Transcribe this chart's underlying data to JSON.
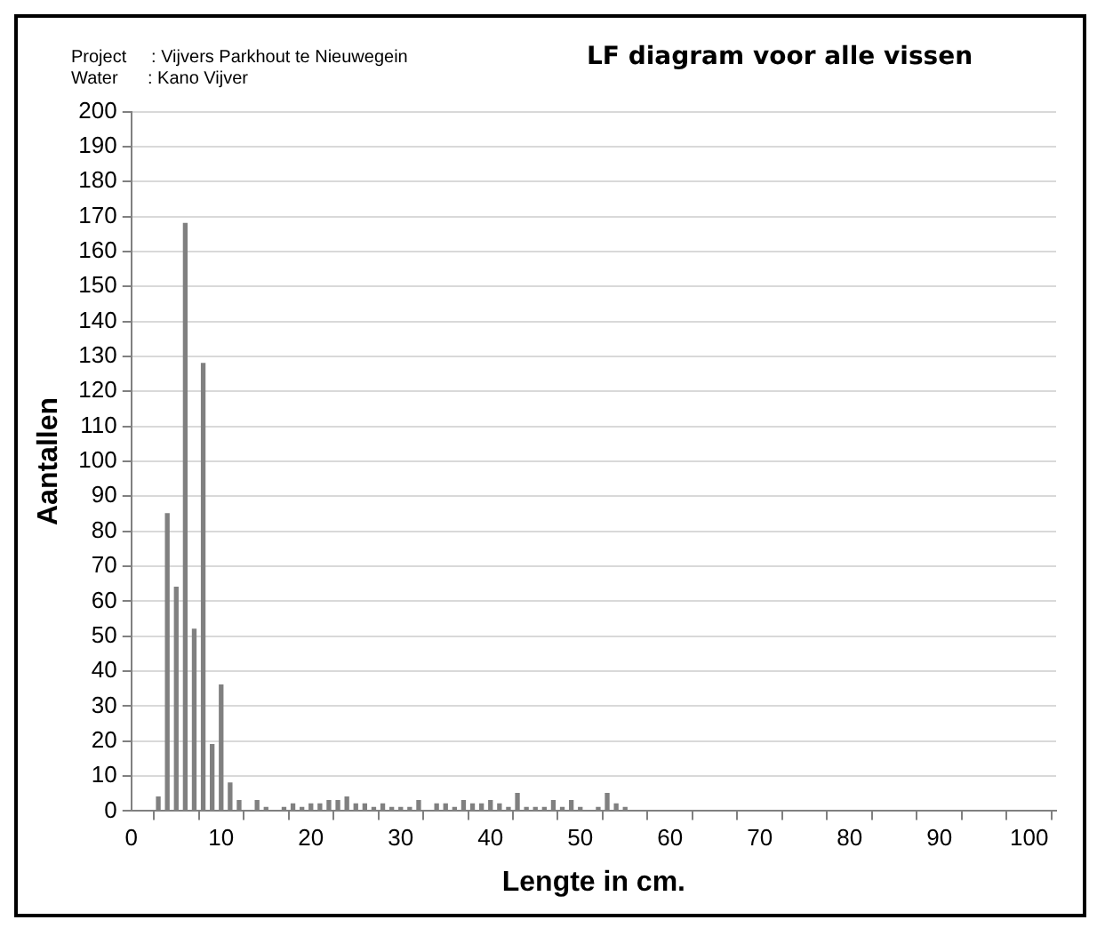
{
  "chart_data": {
    "type": "bar",
    "title": "LF diagram voor alle vissen",
    "annotations": [
      "Project     : Vijvers Parkhout te Nieuwegein",
      "Water      : Kano Vijver"
    ],
    "xlabel": "Lengte in cm.",
    "ylabel": "Aantallen",
    "categories": [
      "0",
      null,
      null,
      null,
      null,
      null,
      null,
      null,
      null,
      null,
      "10",
      null,
      null,
      null,
      null,
      null,
      null,
      null,
      null,
      null,
      "20",
      null,
      null,
      null,
      null,
      null,
      null,
      null,
      null,
      null,
      "30",
      null,
      null,
      null,
      null,
      null,
      null,
      null,
      null,
      null,
      "40",
      null,
      null,
      null,
      null,
      null,
      null,
      null,
      null,
      null,
      "50",
      null,
      null,
      null,
      null,
      null,
      null,
      null,
      null,
      null,
      "60",
      null,
      null,
      null,
      null,
      null,
      null,
      null,
      null,
      null,
      "70",
      null,
      null,
      null,
      null,
      null,
      null,
      null,
      null,
      null,
      "80",
      null,
      null,
      null,
      null,
      null,
      null,
      null,
      null,
      null,
      "90",
      null,
      null,
      null,
      null,
      null,
      null,
      null,
      null,
      null,
      "100",
      null,
      null,
      null
    ],
    "values": [
      null,
      null,
      null,
      4,
      85,
      64,
      168,
      52,
      128,
      19,
      36,
      8,
      3,
      null,
      3,
      1,
      null,
      1,
      2,
      1,
      2,
      2,
      3,
      3,
      4,
      2,
      2,
      1,
      2,
      1,
      1,
      1,
      3,
      null,
      2,
      2,
      1,
      3,
      2,
      2,
      3,
      2,
      1,
      5,
      1,
      1,
      1,
      3,
      1,
      3,
      1,
      null,
      1,
      5,
      2,
      1,
      null,
      null,
      null,
      null,
      null,
      null,
      null,
      null,
      null,
      null,
      null,
      null,
      null,
      null,
      null,
      null,
      null,
      null,
      null,
      null,
      null,
      null,
      null,
      null,
      null,
      null,
      null,
      null,
      null,
      null,
      null,
      null,
      null,
      null,
      null,
      null,
      null,
      null,
      null,
      null,
      null,
      null,
      null,
      null,
      null,
      null,
      null,
      null
    ],
    "color": "#808080",
    "ylim": [
      0,
      200
    ],
    "yticks": [
      0,
      10,
      20,
      30,
      40,
      50,
      60,
      70,
      80,
      90,
      100,
      110,
      120,
      130,
      140,
      150,
      160,
      170,
      180,
      190,
      200
    ],
    "grid": "y",
    "legend": false
  }
}
